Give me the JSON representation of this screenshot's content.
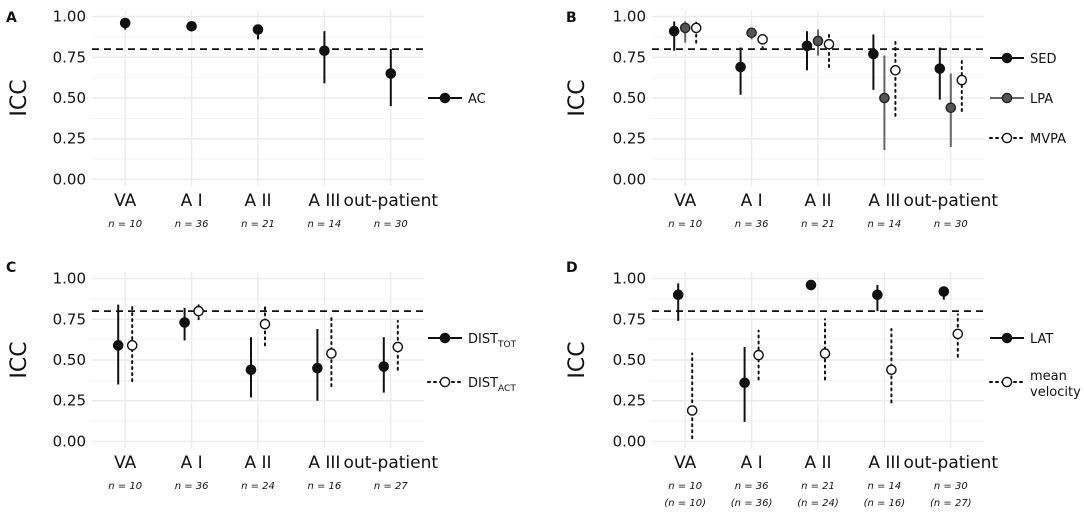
{
  "chart_data": [
    {
      "type": "scatter",
      "panel_label": "A",
      "ylabel": "ICC",
      "ylim": [
        0,
        1
      ],
      "yticks": [
        "0.00",
        "0.25",
        "0.50",
        "0.75",
        "1.00"
      ],
      "reference_line": 0.8,
      "categories": [
        "VA",
        "A I",
        "A II",
        "A III",
        "out-patient"
      ],
      "n_labels": [
        "n = 10",
        "n = 36",
        "n = 21",
        "n = 14",
        "n = 30"
      ],
      "n_labels2": [],
      "series": [
        {
          "name": "AC",
          "style": "solid",
          "marker": "filled",
          "color": "#111111",
          "values": [
            0.96,
            0.94,
            0.92,
            0.79,
            0.65
          ],
          "lower": [
            0.92,
            0.91,
            0.86,
            0.59,
            0.45
          ],
          "upper": [
            0.98,
            0.96,
            0.95,
            0.91,
            0.8
          ]
        }
      ],
      "legend": [
        {
          "text": "AC"
        }
      ]
    },
    {
      "type": "scatter",
      "panel_label": "B",
      "ylabel": "ICC",
      "ylim": [
        0,
        1
      ],
      "yticks": [
        "0.00",
        "0.25",
        "0.50",
        "0.75",
        "1.00"
      ],
      "reference_line": 0.8,
      "categories": [
        "VA",
        "A I",
        "A II",
        "A III",
        "out-patient"
      ],
      "n_labels": [
        "n = 10",
        "n = 36",
        "n = 21",
        "n = 14",
        "n = 30"
      ],
      "n_labels2": [],
      "series": [
        {
          "name": "SED",
          "style": "solid",
          "marker": "filled",
          "color": "#111111",
          "values": [
            0.91,
            0.69,
            0.82,
            0.77,
            0.68
          ],
          "lower": [
            0.79,
            0.52,
            0.67,
            0.55,
            0.49
          ],
          "upper": [
            0.97,
            0.81,
            0.91,
            0.89,
            0.81
          ]
        },
        {
          "name": "LPA",
          "style": "solid",
          "marker": "grey",
          "color": "#666666",
          "values": [
            0.93,
            0.9,
            0.85,
            0.5,
            0.44
          ],
          "lower": [
            0.84,
            0.86,
            0.76,
            0.18,
            0.2
          ],
          "upper": [
            0.97,
            0.93,
            0.92,
            0.76,
            0.65
          ]
        },
        {
          "name": "MVPA",
          "style": "dotted",
          "marker": "open",
          "color": "#111111",
          "values": [
            0.93,
            0.86,
            0.83,
            0.67,
            0.61
          ],
          "lower": [
            0.84,
            0.8,
            0.69,
            0.39,
            0.42
          ],
          "upper": [
            0.97,
            0.9,
            0.91,
            0.85,
            0.75
          ]
        }
      ],
      "legend": [
        {
          "text": "SED"
        },
        {
          "text": "LPA"
        },
        {
          "text": "MVPA"
        }
      ]
    },
    {
      "type": "scatter",
      "panel_label": "C",
      "ylabel": "ICC",
      "ylim": [
        0,
        1
      ],
      "yticks": [
        "0.00",
        "0.25",
        "0.50",
        "0.75",
        "1.00"
      ],
      "reference_line": 0.8,
      "categories": [
        "VA",
        "A I",
        "A II",
        "A III",
        "out-patient"
      ],
      "n_labels": [
        "n = 10",
        "n = 36",
        "n = 24",
        "n = 16",
        "n = 27"
      ],
      "n_labels2": [],
      "series": [
        {
          "name": "DIST_TOT",
          "style": "solid",
          "marker": "filled",
          "color": "#111111",
          "values": [
            0.59,
            0.73,
            0.44,
            0.45,
            0.46
          ],
          "lower": [
            0.35,
            0.62,
            0.27,
            0.25,
            0.3
          ],
          "upper": [
            0.84,
            0.82,
            0.64,
            0.69,
            0.64
          ]
        },
        {
          "name": "DIST_ACT",
          "style": "dotted",
          "marker": "open",
          "color": "#111111",
          "values": [
            0.59,
            0.8,
            0.72,
            0.54,
            0.58
          ],
          "lower": [
            0.37,
            0.75,
            0.59,
            0.34,
            0.44
          ],
          "upper": [
            0.84,
            0.86,
            0.84,
            0.76,
            0.74
          ]
        }
      ],
      "legend": [
        {
          "text": "DIST",
          "sub": "TOT"
        },
        {
          "text": "DIST",
          "sub": "ACT"
        }
      ]
    },
    {
      "type": "scatter",
      "panel_label": "D",
      "ylabel": "ICC",
      "ylim": [
        0,
        1
      ],
      "yticks": [
        "0.00",
        "0.25",
        "0.50",
        "0.75",
        "1.00"
      ],
      "reference_line": 0.8,
      "categories": [
        "VA",
        "A I",
        "A II",
        "A III",
        "out-patient"
      ],
      "n_labels": [
        "n = 10",
        "n = 36",
        "n = 21",
        "n = 14",
        "n = 30"
      ],
      "n_labels2": [
        "(n = 10)",
        "(n = 36)",
        "(n = 24)",
        "(n = 16)",
        "(n = 27)"
      ],
      "series": [
        {
          "name": "LAT",
          "style": "solid",
          "marker": "filled",
          "color": "#111111",
          "values": [
            0.9,
            0.36,
            0.96,
            0.9,
            0.92
          ],
          "lower": [
            0.74,
            0.12,
            0.94,
            0.8,
            0.87
          ],
          "upper": [
            0.97,
            0.58,
            0.98,
            0.96,
            0.95
          ]
        },
        {
          "name": "mean velocity",
          "style": "dotted",
          "marker": "open",
          "color": "#111111",
          "values": [
            0.19,
            0.53,
            0.54,
            0.44,
            0.66
          ],
          "lower": [
            0.02,
            0.38,
            0.38,
            0.24,
            0.52
          ],
          "upper": [
            0.54,
            0.68,
            0.75,
            0.69,
            0.78
          ]
        }
      ],
      "legend": [
        {
          "text": "LAT"
        },
        {
          "text": "mean",
          "line2": "velocity"
        }
      ]
    }
  ]
}
